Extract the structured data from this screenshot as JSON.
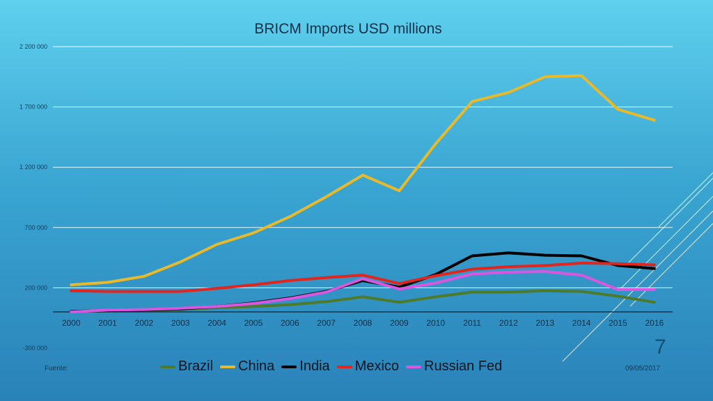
{
  "slide": {
    "page_number": "7",
    "footer_left": "Fuente:",
    "footer_date": "09/05/2017"
  },
  "chart_data": {
    "type": "line",
    "title": "BRICM Imports USD millions",
    "xlabel": "",
    "ylabel": "",
    "categories": [
      "2000",
      "2001",
      "2002",
      "2003",
      "2004",
      "2005",
      "2006",
      "2007",
      "2008",
      "2009",
      "2010",
      "2011",
      "2012",
      "2013",
      "2014",
      "2015",
      "2016"
    ],
    "y_ticks": [
      -300000,
      200000,
      700000,
      1200000,
      1700000,
      2200000
    ],
    "y_tick_labels": [
      "-300 000",
      "200 000",
      "700 000",
      "1 200 000",
      "1 700 000",
      "2 200 000"
    ],
    "ylim": [
      -300000,
      2200000
    ],
    "grid": true,
    "legend_position": "bottom",
    "series": [
      {
        "name": "Brazil",
        "color": "#4e7a2b",
        "values": [
          5000,
          10000,
          15000,
          20000,
          35000,
          45000,
          60000,
          85000,
          125000,
          80000,
          125000,
          165000,
          165000,
          175000,
          170000,
          130000,
          80000
        ]
      },
      {
        "name": "China",
        "color": "#e8b92a",
        "values": [
          225000,
          245000,
          295000,
          415000,
          560000,
          655000,
          790000,
          955000,
          1135000,
          1005000,
          1395000,
          1745000,
          1820000,
          1950000,
          1960000,
          1680000,
          1590000
        ]
      },
      {
        "name": "India",
        "color": "#000000",
        "values": [
          5000,
          10000,
          15000,
          25000,
          45000,
          75000,
          115000,
          170000,
          260000,
          205000,
          310000,
          465000,
          490000,
          470000,
          465000,
          385000,
          360000
        ]
      },
      {
        "name": "Mexico",
        "color": "#e0261e",
        "values": [
          175000,
          170000,
          170000,
          170000,
          195000,
          225000,
          260000,
          285000,
          305000,
          235000,
          300000,
          355000,
          375000,
          385000,
          405000,
          400000,
          390000
        ]
      },
      {
        "name": "Russian Fed",
        "color": "#d857e0",
        "values": [
          0,
          15000,
          20000,
          30000,
          45000,
          70000,
          110000,
          165000,
          275000,
          190000,
          240000,
          315000,
          330000,
          335000,
          305000,
          185000,
          185000
        ]
      }
    ]
  }
}
